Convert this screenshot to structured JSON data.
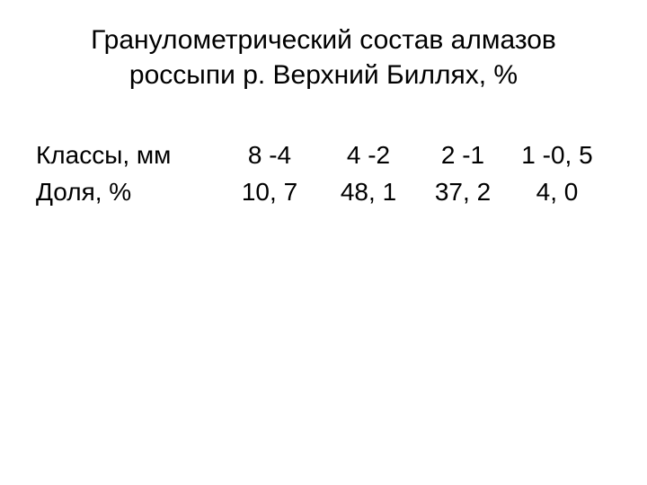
{
  "title_line1": "Гранулометрический состав алмазов",
  "title_line2": "россыпи р. Верхний Биллях, %",
  "table": {
    "row1": {
      "label": "Классы, мм",
      "c1": "8 -4",
      "c2": "4 -2",
      "c3": "2 -1",
      "c4": "1 -0, 5"
    },
    "row2": {
      "label": "Доля, %",
      "c1": "10, 7",
      "c2": "48, 1",
      "c3": "37, 2",
      "c4": "4, 0"
    }
  },
  "styling": {
    "background_color": "#ffffff",
    "text_color": "#000000",
    "title_fontsize": 30,
    "body_fontsize": 28,
    "font_family": "Arial"
  }
}
